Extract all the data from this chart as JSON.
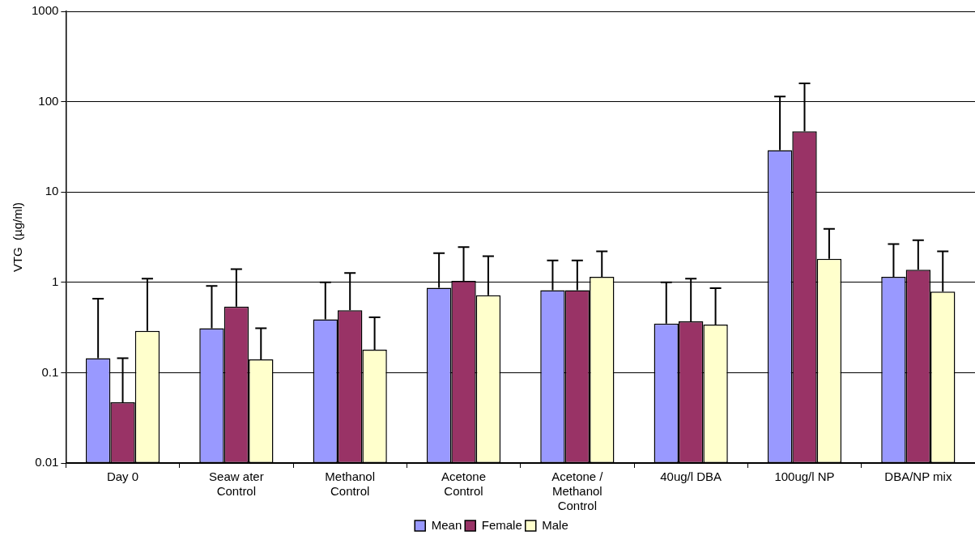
{
  "chart_data": {
    "type": "bar",
    "ylabel": "VTG  (µg/ml)",
    "categories": [
      "Day 0",
      "Seaw ater\nControl",
      "Methanol\nControl",
      "Acetone\nControl",
      "Acetone /\nMethanol\nControl",
      "40ug/l DBA",
      "100ug/l NP",
      "DBA/NP mix"
    ],
    "series": [
      {
        "name": "Mean",
        "color": "#9999ff",
        "values": [
          0.145,
          0.31,
          0.39,
          0.87,
          0.82,
          0.35,
          29,
          1.15
        ],
        "errors": [
          [
            0.145,
            0.66
          ],
          [
            0.31,
            0.91
          ],
          [
            0.39,
            1.0
          ],
          [
            0.87,
            2.1
          ],
          [
            0.82,
            1.75
          ],
          [
            0.35,
            1.0
          ],
          [
            29,
            114
          ],
          [
            1.15,
            2.66
          ]
        ]
      },
      {
        "name": "Female",
        "color": "#993366",
        "values": [
          0.047,
          0.54,
          0.49,
          1.04,
          0.82,
          0.37,
          47,
          1.38
        ],
        "errors": [
          [
            0.047,
            0.145
          ],
          [
            0.54,
            1.4
          ],
          [
            0.49,
            1.27
          ],
          [
            1.04,
            2.46
          ],
          [
            0.82,
            1.75
          ],
          [
            0.37,
            1.1
          ],
          [
            47,
            159
          ],
          [
            1.38,
            2.92
          ]
        ]
      },
      {
        "name": "Male",
        "color": "#ffffcc",
        "values": [
          0.29,
          0.14,
          0.18,
          0.72,
          1.15,
          0.34,
          1.82,
          0.79
        ],
        "errors": [
          [
            0.29,
            1.1
          ],
          [
            0.14,
            0.31
          ],
          [
            0.18,
            0.41
          ],
          [
            0.72,
            1.95
          ],
          [
            1.15,
            2.2
          ],
          [
            0.34,
            0.86
          ],
          [
            1.82,
            3.9
          ],
          [
            0.79,
            2.2
          ]
        ]
      }
    ],
    "log": true,
    "ylim": [
      0.01,
      1000
    ],
    "yticks": [
      0.01,
      0.1,
      1,
      10,
      100,
      1000
    ],
    "grid": "y",
    "legend": "bottom"
  }
}
